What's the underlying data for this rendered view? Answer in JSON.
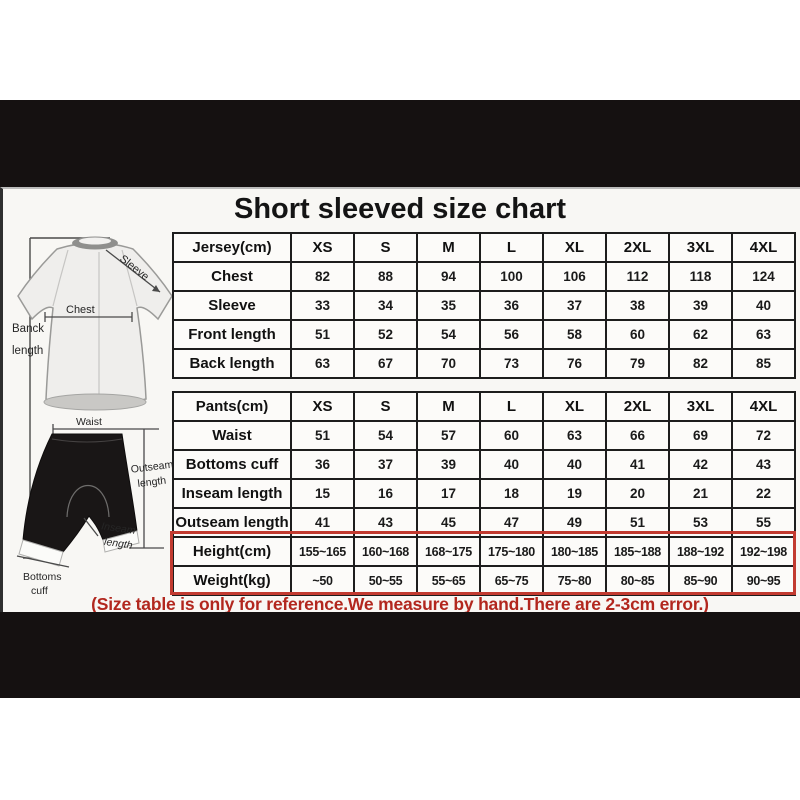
{
  "title": "Short sleeved size chart",
  "note": "(Size table is only for reference.We measure by hand.There are 2-3cm error.)",
  "colors": {
    "accent_red": "#c23a30",
    "note_red": "#b2271e",
    "letterbox_black": "#151111",
    "table_line": "#1d1d1d"
  },
  "illustration_labels": {
    "sleeve": "Sleeve",
    "chest": "Chest",
    "back_length_line1": "Banck",
    "back_length_line2": "length",
    "waist": "Waist",
    "outseam_line1": "Outseam",
    "outseam_line2": "length",
    "inseam_line1": "Inseam",
    "inseam_line2": "length",
    "bottoms_cuff_line1": "Bottoms",
    "bottoms_cuff_line2": "cuff"
  },
  "chart_data": {
    "type": "table",
    "title": "Short sleeved size chart",
    "tables": [
      {
        "id": "jersey",
        "header": [
          "Jersey(cm)",
          "XS",
          "S",
          "M",
          "L",
          "XL",
          "2XL",
          "3XL",
          "4XL"
        ],
        "rows": [
          [
            "Chest",
            "82",
            "88",
            "94",
            "100",
            "106",
            "112",
            "118",
            "124"
          ],
          [
            "Sleeve",
            "33",
            "34",
            "35",
            "36",
            "37",
            "38",
            "39",
            "40"
          ],
          [
            "Front length",
            "51",
            "52",
            "54",
            "56",
            "58",
            "60",
            "62",
            "63"
          ],
          [
            "Back length",
            "63",
            "67",
            "70",
            "73",
            "76",
            "79",
            "82",
            "85"
          ]
        ],
        "highlight_rows": []
      },
      {
        "id": "pants",
        "header": [
          "Pants(cm)",
          "XS",
          "S",
          "M",
          "L",
          "XL",
          "2XL",
          "3XL",
          "4XL"
        ],
        "rows": [
          [
            "Waist",
            "51",
            "54",
            "57",
            "60",
            "63",
            "66",
            "69",
            "72"
          ],
          [
            "Bottoms cuff",
            "36",
            "37",
            "39",
            "40",
            "40",
            "41",
            "42",
            "43"
          ],
          [
            "Inseam length",
            "15",
            "16",
            "17",
            "18",
            "19",
            "20",
            "21",
            "22"
          ],
          [
            "Outseam length",
            "41",
            "43",
            "45",
            "47",
            "49",
            "51",
            "53",
            "55"
          ],
          [
            "Height(cm)",
            "155~165",
            "160~168",
            "168~175",
            "175~180",
            "180~185",
            "185~188",
            "188~192",
            "192~198"
          ],
          [
            "Weight(kg)",
            "~50",
            "50~55",
            "55~65",
            "65~75",
            "75~80",
            "80~85",
            "85~90",
            "90~95"
          ]
        ],
        "highlight_rows": [
          4,
          5
        ]
      }
    ]
  }
}
